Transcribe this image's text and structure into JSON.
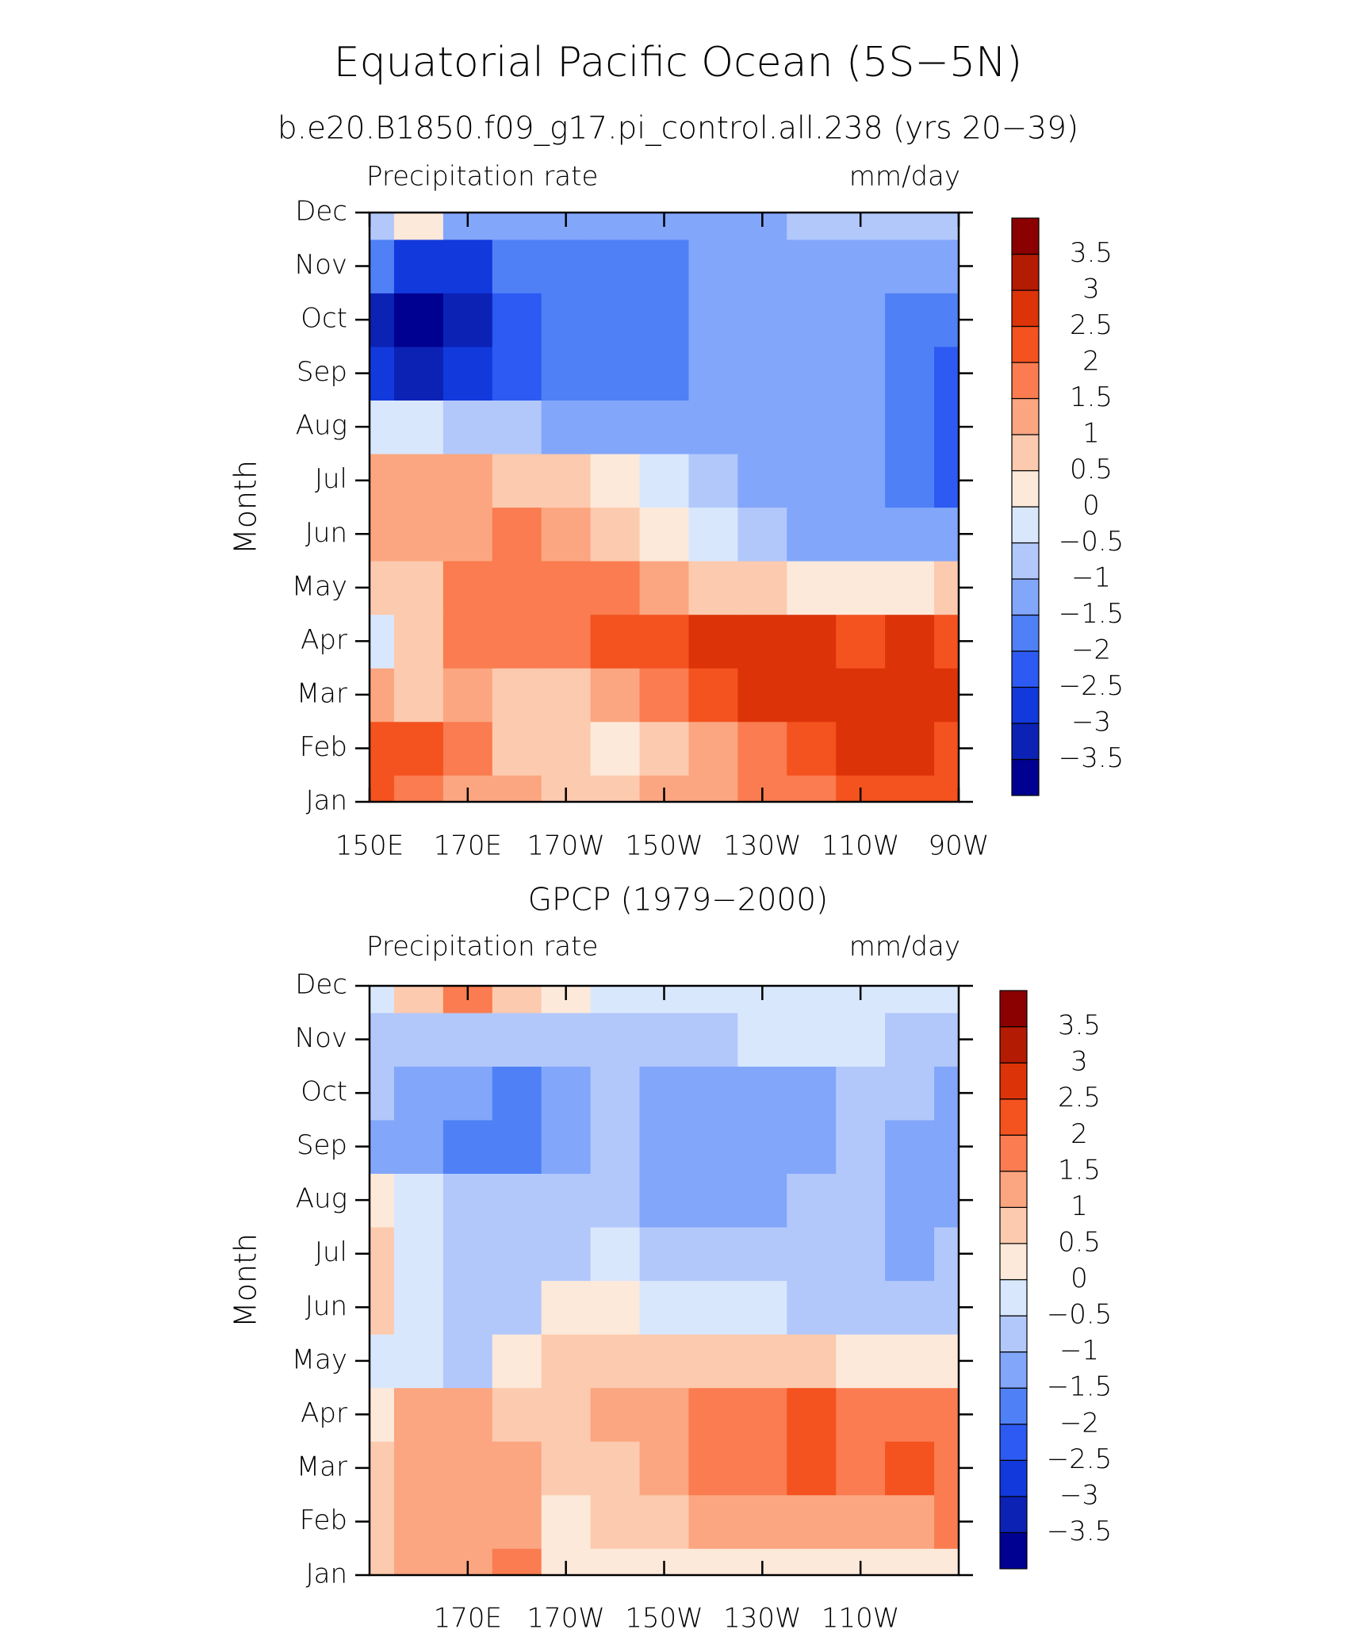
{
  "chart_data": [
    {
      "type": "heatmap",
      "title": "Equatorial Pacific Ocean (5S−5N)",
      "subtitle": "b.e20.B1850.f09_g17.pi_control.all.238 (yrs 20−39)",
      "left_label": "Precipitation rate",
      "right_label": "mm/day",
      "ylabel": "Month",
      "categories": [
        "Jan",
        "Feb",
        "Mar",
        "Apr",
        "May",
        "Jun",
        "Jul",
        "Aug",
        "Sep",
        "Oct",
        "Nov",
        "Dec"
      ],
      "x": [
        150,
        160,
        170,
        180,
        190,
        200,
        210,
        220,
        230,
        240,
        250,
        260,
        270
      ],
      "xlim": [
        150,
        270
      ],
      "xticks": [
        {
          "value": 150,
          "label": "150E"
        },
        {
          "value": 170,
          "label": "170E"
        },
        {
          "value": 190,
          "label": "170W"
        },
        {
          "value": 210,
          "label": "150W"
        },
        {
          "value": 230,
          "label": "130W"
        },
        {
          "value": 250,
          "label": "110W"
        },
        {
          "value": 270,
          "label": "90W"
        }
      ],
      "values": [
        [
          2,
          1.5,
          1,
          1,
          0.7,
          0.7,
          1,
          1.2,
          1.5,
          1.8,
          2,
          2.2,
          2.3
        ],
        [
          2.2,
          2,
          1.7,
          0.8,
          0.6,
          0.3,
          0.8,
          1.3,
          1.7,
          2.2,
          2.5,
          2.5,
          2.3
        ],
        [
          1.2,
          0.9,
          1,
          0.8,
          0.9,
          1.2,
          1.7,
          2.2,
          2.7,
          2.8,
          2.9,
          2.8,
          2.8
        ],
        [
          -0.2,
          0.7,
          1.6,
          1.9,
          1.9,
          2.1,
          2.3,
          2.6,
          2.6,
          2.6,
          2.4,
          2.5,
          2.2
        ],
        [
          0.6,
          0.8,
          1.7,
          1.8,
          1.6,
          1.5,
          1.2,
          0.8,
          0.6,
          0.3,
          0.3,
          0.4,
          0.6
        ],
        [
          1.2,
          1.4,
          1.3,
          1.6,
          1.1,
          0.8,
          0.3,
          -0.2,
          -0.7,
          -1.2,
          -1.3,
          -1.3,
          -1.3
        ],
        [
          1.3,
          1.4,
          1.2,
          0.8,
          0.6,
          0.1,
          -0.4,
          -0.8,
          -1.1,
          -1.3,
          -1.4,
          -1.8,
          -2.1
        ],
        [
          -0.4,
          -0.5,
          -0.6,
          -0.8,
          -1.1,
          -1.2,
          -1.3,
          -1.3,
          -1.4,
          -1.4,
          -1.5,
          -1.8,
          -2.2
        ],
        [
          -2.8,
          -3.2,
          -2.8,
          -2.3,
          -2,
          -1.8,
          -1.6,
          -1.4,
          -1.4,
          -1.4,
          -1.5,
          -1.9,
          -2.1
        ],
        [
          -3.2,
          -3.6,
          -3.1,
          -2.3,
          -1.9,
          -1.8,
          -1.8,
          -1.4,
          -1.4,
          -1.3,
          -1.3,
          -1.6,
          -1.9
        ],
        [
          -1.8,
          -2.7,
          -2.6,
          -2,
          -1.8,
          -1.8,
          -1.7,
          -1.3,
          -1.2,
          -1.2,
          -1.1,
          -1.1,
          -1.4
        ],
        [
          -0.6,
          0.2,
          -1.3,
          -1.4,
          -1.3,
          -1.3,
          -1.2,
          -1.2,
          -1.1,
          -1,
          -0.9,
          -0.7,
          -0.8
        ]
      ],
      "levels": [
        {
          "value": -3.5,
          "label": "−3.5"
        },
        {
          "value": -3,
          "label": "−3"
        },
        {
          "value": -2.5,
          "label": "−2.5"
        },
        {
          "value": -2,
          "label": "−2"
        },
        {
          "value": -1.5,
          "label": "−1.5"
        },
        {
          "value": -1,
          "label": "−1"
        },
        {
          "value": -0.5,
          "label": "−0.5"
        },
        0,
        0.5,
        1,
        1.5,
        2,
        2.5,
        3,
        3.5
      ],
      "colors": [
        "#000091",
        "#0b22b5",
        "#1239dc",
        "#2c5af2",
        "#4f80f6",
        "#82a6fa",
        "#b2c8fb",
        "#d9e7fd",
        "#fde9da",
        "#fccaae",
        "#fba681",
        "#fa7c50",
        "#f4521f",
        "#dd3309",
        "#b31b03",
        "#8b0000"
      ]
    },
    {
      "type": "heatmap",
      "subtitle": "GPCP (1979−2000)",
      "left_label": "Precipitation rate",
      "right_label": "mm/day",
      "ylabel": "Month",
      "categories": [
        "Jan",
        "Feb",
        "Mar",
        "Apr",
        "May",
        "Jun",
        "Jul",
        "Aug",
        "Sep",
        "Oct",
        "Nov",
        "Dec"
      ],
      "x": [
        150,
        160,
        170,
        180,
        190,
        200,
        210,
        220,
        230,
        240,
        250,
        260,
        270
      ],
      "xlim": [
        150,
        270
      ],
      "xticks": [
        {
          "value": 170,
          "label": "170E"
        },
        {
          "value": 190,
          "label": "170W"
        },
        {
          "value": 210,
          "label": "150W"
        },
        {
          "value": 230,
          "label": "130W"
        },
        {
          "value": 250,
          "label": "110W"
        }
      ],
      "values": [
        [
          0.5,
          1.2,
          1.2,
          1.7,
          0.3,
          0.2,
          0.2,
          0.2,
          0.2,
          0.1,
          0.2,
          0.3,
          0.4
        ],
        [
          0.8,
          1.3,
          1.1,
          1.4,
          0.3,
          0.6,
          0.8,
          1,
          1.1,
          1.2,
          1.3,
          1.4,
          1.5
        ],
        [
          0.7,
          1.2,
          1.3,
          1.3,
          0.8,
          0.5,
          1.2,
          1.5,
          1.7,
          2.1,
          1.7,
          2.1,
          1.7
        ],
        [
          0.4,
          1.1,
          1.2,
          0.8,
          0.8,
          1.2,
          1.3,
          1.7,
          1.8,
          2,
          1.6,
          1.9,
          1.6
        ],
        [
          -0.3,
          -0.4,
          -0.6,
          0.4,
          0.6,
          0.7,
          0.8,
          0.6,
          0.6,
          0.5,
          0.4,
          0.3,
          0.3
        ],
        [
          0.8,
          -0.3,
          -0.7,
          -0.6,
          0.1,
          0.1,
          -0.1,
          -0.3,
          -0.5,
          -0.6,
          -0.7,
          -0.8,
          -0.6
        ],
        [
          0.7,
          -0.4,
          -0.6,
          -0.7,
          -0.6,
          -0.5,
          -0.6,
          -0.7,
          -0.8,
          -0.8,
          -0.8,
          -1.2,
          -1
        ],
        [
          0.3,
          -0.5,
          -0.8,
          -0.8,
          -0.7,
          -0.9,
          -1.2,
          -1.2,
          -1.1,
          -1,
          -0.9,
          -1.1,
          -1.1
        ],
        [
          -1.2,
          -1.1,
          -1.6,
          -1.7,
          -1.1,
          -0.9,
          -1.1,
          -1.3,
          -1.3,
          -1.2,
          -0.9,
          -1.1,
          -1.3
        ],
        [
          -0.8,
          -1.2,
          -1.3,
          -1.7,
          -1.1,
          -0.9,
          -1.1,
          -1.2,
          -1.2,
          -1.1,
          -0.8,
          -1,
          -1.2
        ],
        [
          -0.8,
          -1,
          -0.8,
          -0.6,
          -0.6,
          -0.6,
          -0.6,
          -0.6,
          -0.5,
          -0.5,
          -0.5,
          -0.6,
          -0.8
        ],
        [
          -0.3,
          0.9,
          1.8,
          0.6,
          0.1,
          -0.2,
          -0.3,
          -0.3,
          -0.4,
          -0.4,
          -0.5,
          -0.4,
          -0.4
        ]
      ],
      "levels": [
        {
          "value": -3.5,
          "label": "−3.5"
        },
        {
          "value": -3,
          "label": "−3"
        },
        {
          "value": -2.5,
          "label": "−2.5"
        },
        {
          "value": -2,
          "label": "−2"
        },
        {
          "value": -1.5,
          "label": "−1.5"
        },
        {
          "value": -1,
          "label": "−1"
        },
        {
          "value": -0.5,
          "label": "−0.5"
        },
        0,
        0.5,
        1,
        1.5,
        2,
        2.5,
        3,
        3.5
      ],
      "colors": [
        "#000091",
        "#0b22b5",
        "#1239dc",
        "#2c5af2",
        "#4f80f6",
        "#82a6fa",
        "#b2c8fb",
        "#d9e7fd",
        "#fde9da",
        "#fccaae",
        "#fba681",
        "#fa7c50",
        "#f4521f",
        "#dd3309",
        "#b31b03",
        "#8b0000"
      ]
    }
  ]
}
